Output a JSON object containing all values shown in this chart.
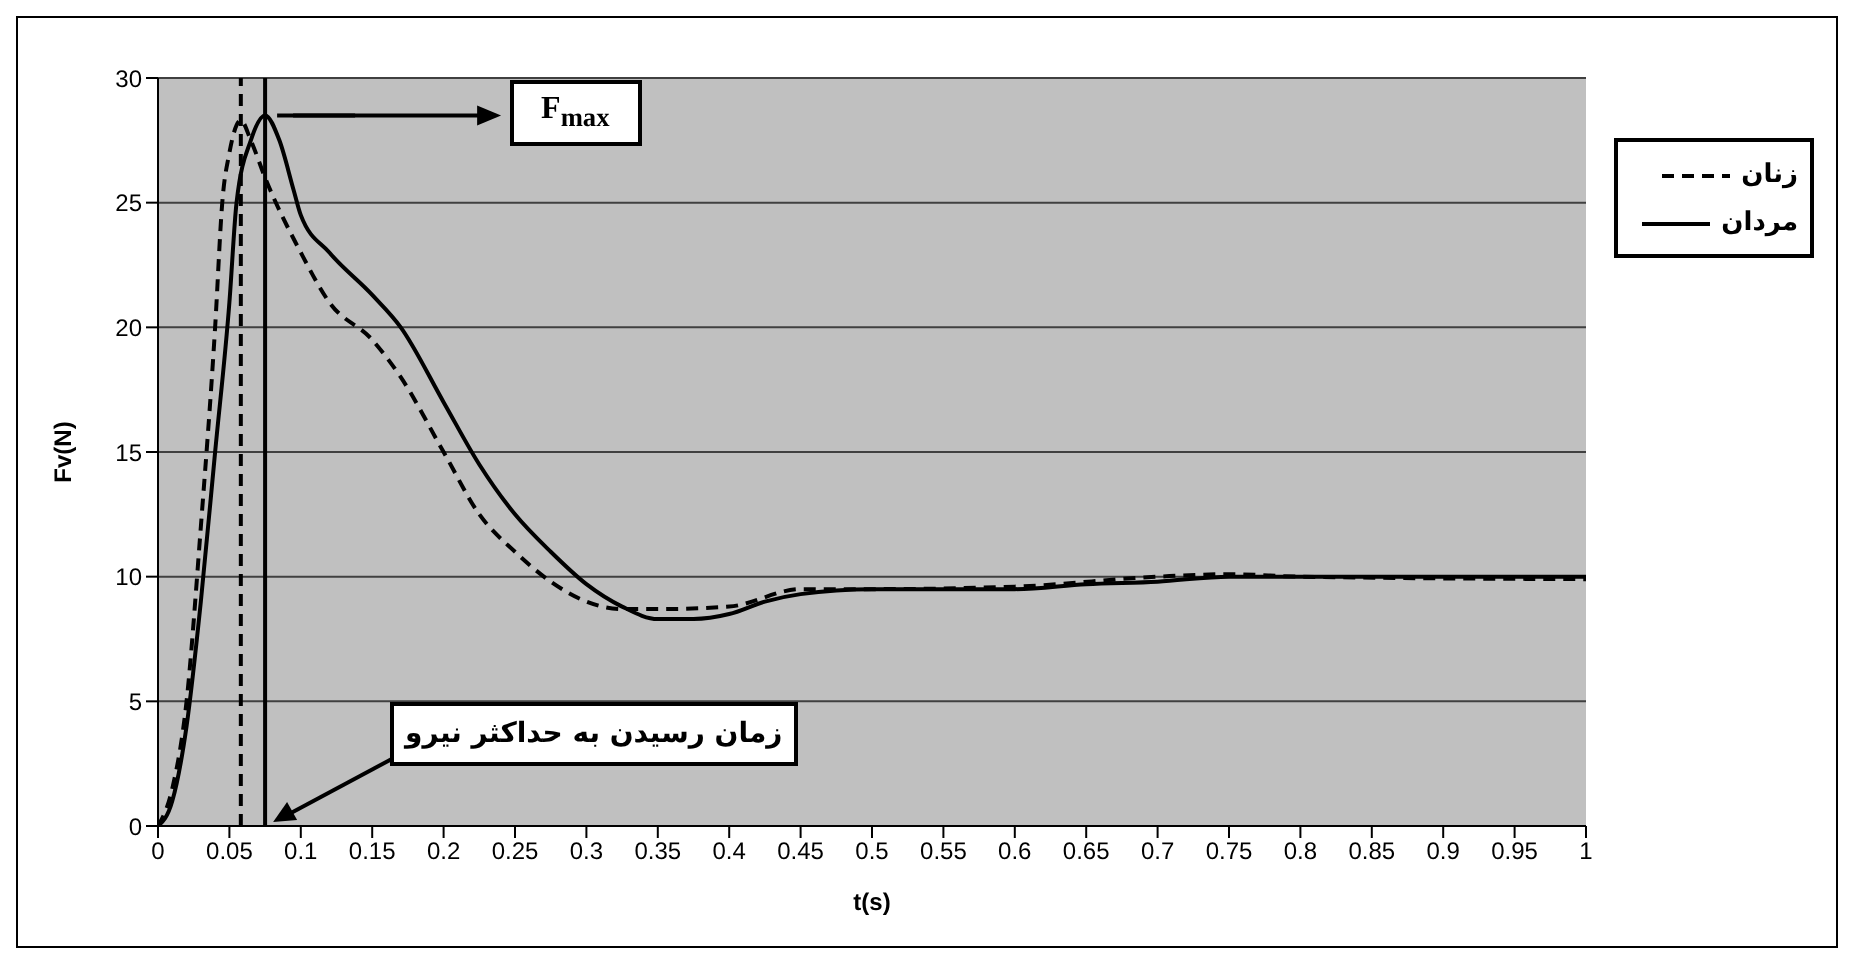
{
  "chart_data": {
    "type": "line",
    "xlabel": "t(s)",
    "ylabel": "Fv(N)",
    "xlim": [
      0,
      1
    ],
    "xticks": [
      0,
      0.05,
      0.1,
      0.15,
      0.2,
      0.25,
      0.3,
      0.35,
      0.4,
      0.45,
      0.5,
      0.55,
      0.6,
      0.65,
      0.7,
      0.75,
      0.8,
      0.85,
      0.9,
      0.95,
      1
    ],
    "ylim": [
      0,
      30
    ],
    "yticks": [
      0,
      5,
      10,
      15,
      20,
      25,
      30
    ],
    "grid": "y",
    "legend": "right",
    "marker": "none",
    "series": [
      {
        "name": "زنان",
        "color": "#000000",
        "line_style": "dashed",
        "x": [
          0,
          0.01,
          0.02,
          0.03,
          0.04,
          0.045,
          0.05,
          0.058,
          0.065,
          0.075,
          0.1,
          0.12,
          0.15,
          0.17,
          0.2,
          0.225,
          0.25,
          0.275,
          0.3,
          0.325,
          0.35,
          0.4,
          0.45,
          0.5,
          0.6,
          0.7,
          0.75,
          0.8,
          1
        ],
        "values": [
          0,
          1.5,
          5,
          12,
          20,
          25,
          27,
          28.3,
          27.5,
          26,
          23,
          21,
          19.5,
          18,
          15,
          12.5,
          11,
          9.8,
          9,
          8.7,
          8.7,
          8.8,
          9.5,
          9.5,
          9.6,
          10,
          10.1,
          10,
          9.9
        ]
      },
      {
        "name": "مردان",
        "color": "#000000",
        "line_style": "solid",
        "x": [
          0,
          0.01,
          0.02,
          0.03,
          0.04,
          0.05,
          0.055,
          0.065,
          0.075,
          0.085,
          0.095,
          0.1,
          0.12,
          0.15,
          0.17,
          0.2,
          0.225,
          0.25,
          0.275,
          0.3,
          0.325,
          0.35,
          0.375,
          0.4,
          0.425,
          0.45,
          0.5,
          0.6,
          0.65,
          0.7,
          0.75,
          1
        ],
        "values": [
          0,
          1,
          4,
          9,
          15,
          21,
          25,
          27.5,
          28.5,
          27.5,
          25.5,
          24.5,
          23,
          21.3,
          20,
          17,
          14.5,
          12.5,
          11,
          9.7,
          8.8,
          8.3,
          8.3,
          8.5,
          9,
          9.3,
          9.5,
          9.5,
          9.7,
          9.8,
          10,
          10
        ]
      }
    ],
    "ref_lines": [
      {
        "axis": "x",
        "value": 0.058,
        "color": "#000000",
        "line_style": "dashed"
      },
      {
        "axis": "x",
        "value": 0.075,
        "color": "#000000",
        "line_style": "solid"
      }
    ],
    "annotations": [
      "F$_{max}$",
      "زمان رسیدن به حداکثر نیرو"
    ]
  }
}
